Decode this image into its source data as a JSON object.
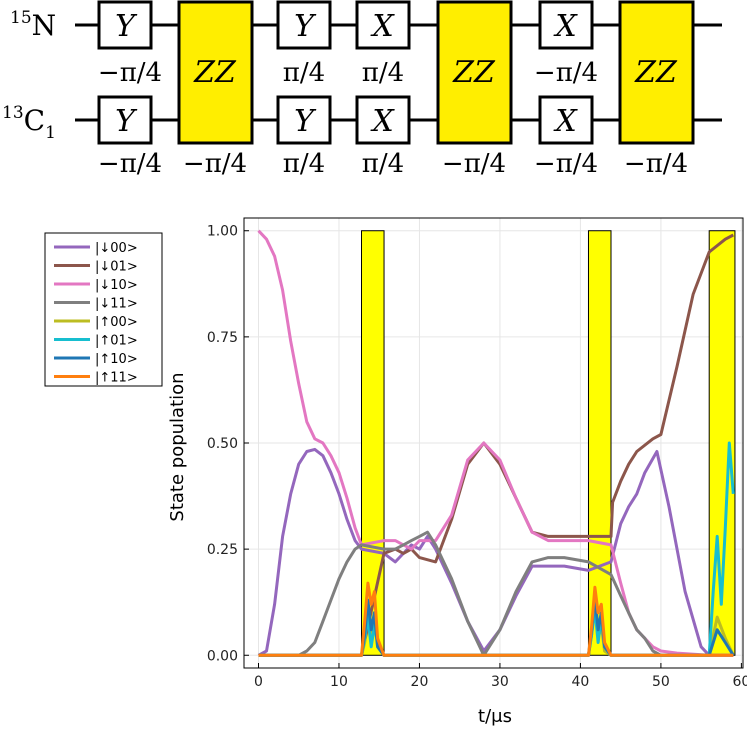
{
  "circuit": {
    "qubits": [
      {
        "sup": "15",
        "base": "N"
      },
      {
        "sup": "13",
        "base": "C",
        "sub": "1"
      }
    ],
    "columns": [
      {
        "kind": "single",
        "top_gate": "Y",
        "bottom_gate": "Y",
        "top_angle": "−π/4",
        "bottom_angle": "−π/4"
      },
      {
        "kind": "zz",
        "gate": "ZZ",
        "angle": "−π/4"
      },
      {
        "kind": "single",
        "top_gate": "Y",
        "bottom_gate": "Y",
        "top_angle": "π/4",
        "bottom_angle": "π/4"
      },
      {
        "kind": "single",
        "top_gate": "X",
        "bottom_gate": "X",
        "top_angle": "π/4",
        "bottom_angle": "π/4"
      },
      {
        "kind": "zz",
        "gate": "ZZ",
        "angle": "−π/4"
      },
      {
        "kind": "single",
        "top_gate": "X",
        "bottom_gate": "X",
        "top_angle": "−π/4",
        "bottom_angle": "−π/4"
      },
      {
        "kind": "zz",
        "gate": "ZZ",
        "angle": "−π/4"
      }
    ]
  },
  "chart_data": {
    "type": "line",
    "xlabel": "t/μs",
    "ylabel": "State population",
    "xlim": [
      -1.8,
      60.2
    ],
    "ylim": [
      -0.03,
      1.03
    ],
    "xticks": [
      0,
      10,
      20,
      30,
      40,
      50,
      60
    ],
    "yticks": [
      0.0,
      0.25,
      0.5,
      0.75,
      1.0
    ],
    "ytick_labels": [
      "0.00",
      "0.25",
      "0.50",
      "0.75",
      "1.00"
    ],
    "grid": true,
    "legend_position": "top-left outside",
    "zz_pulse_windows": [
      [
        12.8,
        15.6
      ],
      [
        41.0,
        43.8
      ],
      [
        56.0,
        59.2
      ]
    ],
    "series": [
      {
        "name": "|↓00>",
        "color": "#9467bd",
        "points": [
          [
            0,
            0
          ],
          [
            1,
            0.01
          ],
          [
            2,
            0.12
          ],
          [
            3,
            0.28
          ],
          [
            4,
            0.38
          ],
          [
            5,
            0.45
          ],
          [
            6,
            0.48
          ],
          [
            7,
            0.485
          ],
          [
            8,
            0.47
          ],
          [
            9,
            0.43
          ],
          [
            10,
            0.38
          ],
          [
            11,
            0.32
          ],
          [
            12,
            0.27
          ],
          [
            12.8,
            0.25
          ],
          [
            15.6,
            0.24
          ],
          [
            17,
            0.22
          ],
          [
            18,
            0.24
          ],
          [
            19,
            0.26
          ],
          [
            20,
            0.25
          ],
          [
            21,
            0.28
          ],
          [
            22,
            0.25
          ],
          [
            24,
            0.17
          ],
          [
            26,
            0.08
          ],
          [
            28,
            0.01
          ],
          [
            30,
            0.06
          ],
          [
            32,
            0.14
          ],
          [
            34,
            0.21
          ],
          [
            36,
            0.21
          ],
          [
            38,
            0.21
          ],
          [
            41,
            0.2
          ],
          [
            43.8,
            0.22
          ],
          [
            45,
            0.31
          ],
          [
            46,
            0.35
          ],
          [
            47,
            0.38
          ],
          [
            48,
            0.43
          ],
          [
            49.5,
            0.48
          ],
          [
            51,
            0.35
          ],
          [
            53,
            0.15
          ],
          [
            55,
            0.02
          ],
          [
            56,
            0.0
          ]
        ]
      },
      {
        "name": "|↓01>",
        "color": "#8c564b",
        "points": [
          [
            12.8,
            0
          ],
          [
            15.6,
            0.24
          ],
          [
            17,
            0.25
          ],
          [
            18,
            0.24
          ],
          [
            19,
            0.25
          ],
          [
            20,
            0.23
          ],
          [
            22,
            0.22
          ],
          [
            24,
            0.32
          ],
          [
            26,
            0.45
          ],
          [
            28,
            0.5
          ],
          [
            30,
            0.45
          ],
          [
            32,
            0.37
          ],
          [
            34,
            0.29
          ],
          [
            36,
            0.28
          ],
          [
            38,
            0.28
          ],
          [
            41,
            0.28
          ],
          [
            43.8,
            0.28
          ],
          [
            44,
            0.36
          ],
          [
            45,
            0.41
          ],
          [
            46,
            0.45
          ],
          [
            47,
            0.48
          ],
          [
            49,
            0.51
          ],
          [
            50,
            0.52
          ],
          [
            52,
            0.68
          ],
          [
            54,
            0.85
          ],
          [
            56,
            0.95
          ],
          [
            58,
            0.98
          ],
          [
            59,
            0.99
          ]
        ]
      },
      {
        "name": "|↓10>",
        "color": "#e377c2",
        "points": [
          [
            0,
            1
          ],
          [
            1,
            0.98
          ],
          [
            2,
            0.94
          ],
          [
            3,
            0.86
          ],
          [
            4,
            0.74
          ],
          [
            5,
            0.64
          ],
          [
            6,
            0.55
          ],
          [
            7,
            0.51
          ],
          [
            8,
            0.5
          ],
          [
            9,
            0.47
          ],
          [
            10,
            0.43
          ],
          [
            11,
            0.37
          ],
          [
            12,
            0.3
          ],
          [
            12.8,
            0.26
          ],
          [
            15.6,
            0.27
          ],
          [
            17,
            0.27
          ],
          [
            18,
            0.26
          ],
          [
            19,
            0.25
          ],
          [
            20,
            0.27
          ],
          [
            22,
            0.27
          ],
          [
            24,
            0.33
          ],
          [
            26,
            0.46
          ],
          [
            28,
            0.5
          ],
          [
            30,
            0.46
          ],
          [
            32,
            0.37
          ],
          [
            34,
            0.29
          ],
          [
            36,
            0.27
          ],
          [
            38,
            0.27
          ],
          [
            41,
            0.27
          ],
          [
            43.8,
            0.26
          ],
          [
            45,
            0.17
          ],
          [
            46,
            0.1
          ],
          [
            47,
            0.06
          ],
          [
            48,
            0.04
          ],
          [
            49,
            0.02
          ],
          [
            50,
            0.01
          ],
          [
            52,
            0.005
          ],
          [
            56,
            0.0
          ]
        ]
      },
      {
        "name": "|↓11>",
        "color": "#7f7f7f",
        "points": [
          [
            0,
            0
          ],
          [
            5,
            0
          ],
          [
            6,
            0.01
          ],
          [
            7,
            0.03
          ],
          [
            8,
            0.08
          ],
          [
            9,
            0.13
          ],
          [
            10,
            0.18
          ],
          [
            11,
            0.22
          ],
          [
            12,
            0.25
          ],
          [
            12.8,
            0.26
          ],
          [
            15.6,
            0.25
          ],
          [
            17,
            0.25
          ],
          [
            18,
            0.26
          ],
          [
            19,
            0.27
          ],
          [
            20,
            0.28
          ],
          [
            21,
            0.29
          ],
          [
            22,
            0.26
          ],
          [
            24,
            0.18
          ],
          [
            26,
            0.08
          ],
          [
            28,
            0.0
          ],
          [
            30,
            0.06
          ],
          [
            32,
            0.15
          ],
          [
            34,
            0.22
          ],
          [
            36,
            0.23
          ],
          [
            38,
            0.23
          ],
          [
            41,
            0.22
          ],
          [
            43.8,
            0.19
          ],
          [
            45,
            0.14
          ],
          [
            46,
            0.1
          ],
          [
            47,
            0.06
          ],
          [
            48,
            0.04
          ],
          [
            49,
            0.01
          ],
          [
            50,
            0.0
          ]
        ]
      },
      {
        "name": "|↑00>",
        "color": "#bcbd22",
        "points": [
          [
            0,
            0
          ],
          [
            12.8,
            0
          ],
          [
            13.2,
            0.03
          ],
          [
            13.6,
            0.11
          ],
          [
            14,
            0.05
          ],
          [
            14.4,
            0.08
          ],
          [
            14.8,
            0.02
          ],
          [
            15.6,
            0
          ],
          [
            41,
            0
          ],
          [
            41.4,
            0.05
          ],
          [
            41.8,
            0.12
          ],
          [
            42.2,
            0.04
          ],
          [
            42.6,
            0.07
          ],
          [
            43,
            0.01
          ],
          [
            43.8,
            0
          ],
          [
            56,
            0
          ],
          [
            57,
            0.09
          ],
          [
            58,
            0.04
          ],
          [
            59,
            0
          ]
        ]
      },
      {
        "name": "|↑01>",
        "color": "#17becf",
        "points": [
          [
            0,
            0
          ],
          [
            12.8,
            0
          ],
          [
            13.2,
            0.04
          ],
          [
            13.6,
            0.09
          ],
          [
            14,
            0.02
          ],
          [
            14.4,
            0.07
          ],
          [
            14.8,
            0.03
          ],
          [
            15.6,
            0
          ],
          [
            41,
            0
          ],
          [
            41.4,
            0.05
          ],
          [
            41.8,
            0.11
          ],
          [
            42.2,
            0.03
          ],
          [
            42.6,
            0.09
          ],
          [
            43,
            0.02
          ],
          [
            43.8,
            0
          ],
          [
            56,
            0
          ],
          [
            56.5,
            0.15
          ],
          [
            57,
            0.28
          ],
          [
            57.5,
            0.12
          ],
          [
            58,
            0.3
          ],
          [
            58.5,
            0.5
          ],
          [
            59,
            0.38
          ]
        ]
      },
      {
        "name": "|↑10>",
        "color": "#1f77b4",
        "points": [
          [
            0,
            0
          ],
          [
            12.8,
            0
          ],
          [
            13.2,
            0.05
          ],
          [
            13.6,
            0.13
          ],
          [
            14,
            0.06
          ],
          [
            14.4,
            0.1
          ],
          [
            14.8,
            0.02
          ],
          [
            15.6,
            0
          ],
          [
            41,
            0
          ],
          [
            41.4,
            0.06
          ],
          [
            41.8,
            0.14
          ],
          [
            42.2,
            0.06
          ],
          [
            42.6,
            0.1
          ],
          [
            43,
            0.02
          ],
          [
            43.8,
            0
          ],
          [
            56,
            0
          ],
          [
            57,
            0.06
          ],
          [
            58,
            0.03
          ],
          [
            59,
            0
          ]
        ]
      },
      {
        "name": "|↑11>",
        "color": "#ff7f0e",
        "points": [
          [
            0,
            0
          ],
          [
            12.8,
            0
          ],
          [
            13.2,
            0.08
          ],
          [
            13.6,
            0.17
          ],
          [
            14,
            0.12
          ],
          [
            14.4,
            0.15
          ],
          [
            14.8,
            0.04
          ],
          [
            15.6,
            0
          ],
          [
            41,
            0
          ],
          [
            41.4,
            0.07
          ],
          [
            41.8,
            0.16
          ],
          [
            42.2,
            0.1
          ],
          [
            42.6,
            0.12
          ],
          [
            43,
            0.03
          ],
          [
            43.8,
            0
          ],
          [
            56,
            0
          ],
          [
            59,
            0
          ]
        ]
      }
    ]
  }
}
